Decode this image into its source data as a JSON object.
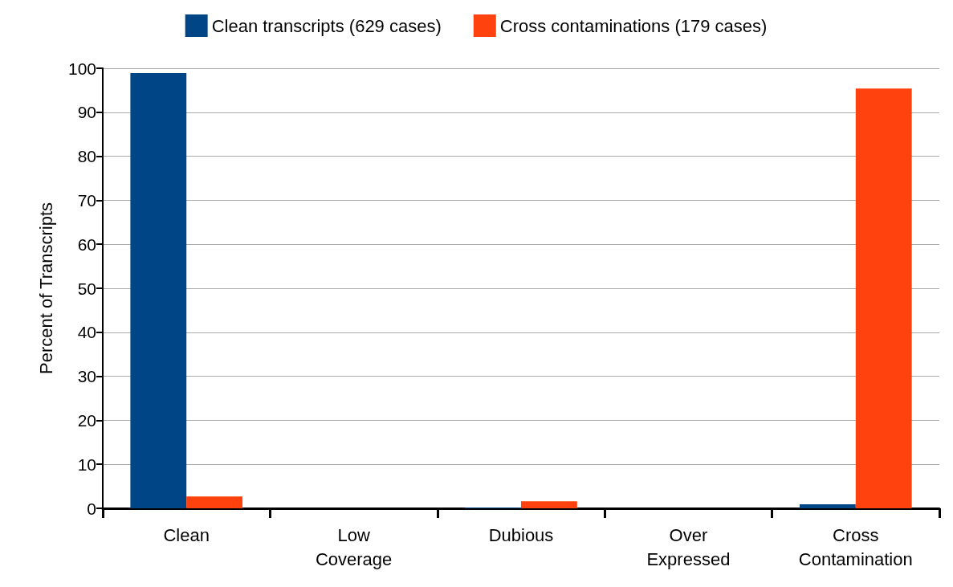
{
  "chart_data": {
    "type": "bar",
    "ylabel": "Percent of Transcripts",
    "categories": [
      "Clean",
      "Low\nCoverage",
      "Dubious",
      "Over\nExpressed",
      "Cross\nContamination"
    ],
    "series": [
      {
        "name": "Clean transcripts (629 cases)",
        "color": "#004586",
        "values": [
          98.9,
          0,
          0.2,
          0,
          0.9
        ]
      },
      {
        "name": "Cross contaminations (179 cases)",
        "color": "#ff420e",
        "values": [
          2.7,
          0,
          1.6,
          0,
          95.4
        ]
      }
    ],
    "ylim": [
      0,
      100
    ],
    "yticks": [
      0,
      10,
      20,
      30,
      40,
      50,
      60,
      70,
      80,
      90,
      100
    ],
    "grid": "y",
    "legend": "top"
  }
}
